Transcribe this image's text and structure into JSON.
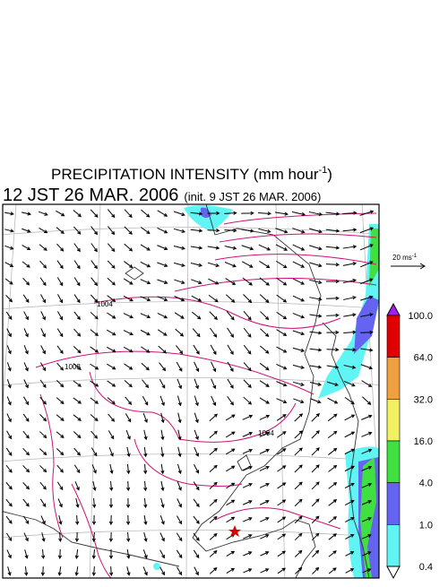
{
  "title": {
    "text": "PRECIPITATION INTENSITY (mm hour",
    "superscript": "-1",
    "suffix": ")"
  },
  "valid_time": "12 JST 26 MAR. 2006",
  "init_time": "(init. 9 JST 26 MAR. 2006)",
  "reference_vector": {
    "text": "20 ms",
    "superscript": "-1"
  },
  "contour_labels": [
    "1004",
    "1008",
    "1004"
  ],
  "legend": {
    "levels": [
      {
        "label": "100.0",
        "color": "#e00000"
      },
      {
        "label": "64.0",
        "color": "#f0a040"
      },
      {
        "label": "32.0",
        "color": "#f0f060"
      },
      {
        "label": "16.0",
        "color": "#40e040"
      },
      {
        "label": "4.0",
        "color": "#6464f0"
      },
      {
        "label": "1.0",
        "color": "#60f4f4"
      },
      {
        "label": "0.4",
        "color": "#ffffff"
      }
    ],
    "over_color": "#a020f0"
  }
}
